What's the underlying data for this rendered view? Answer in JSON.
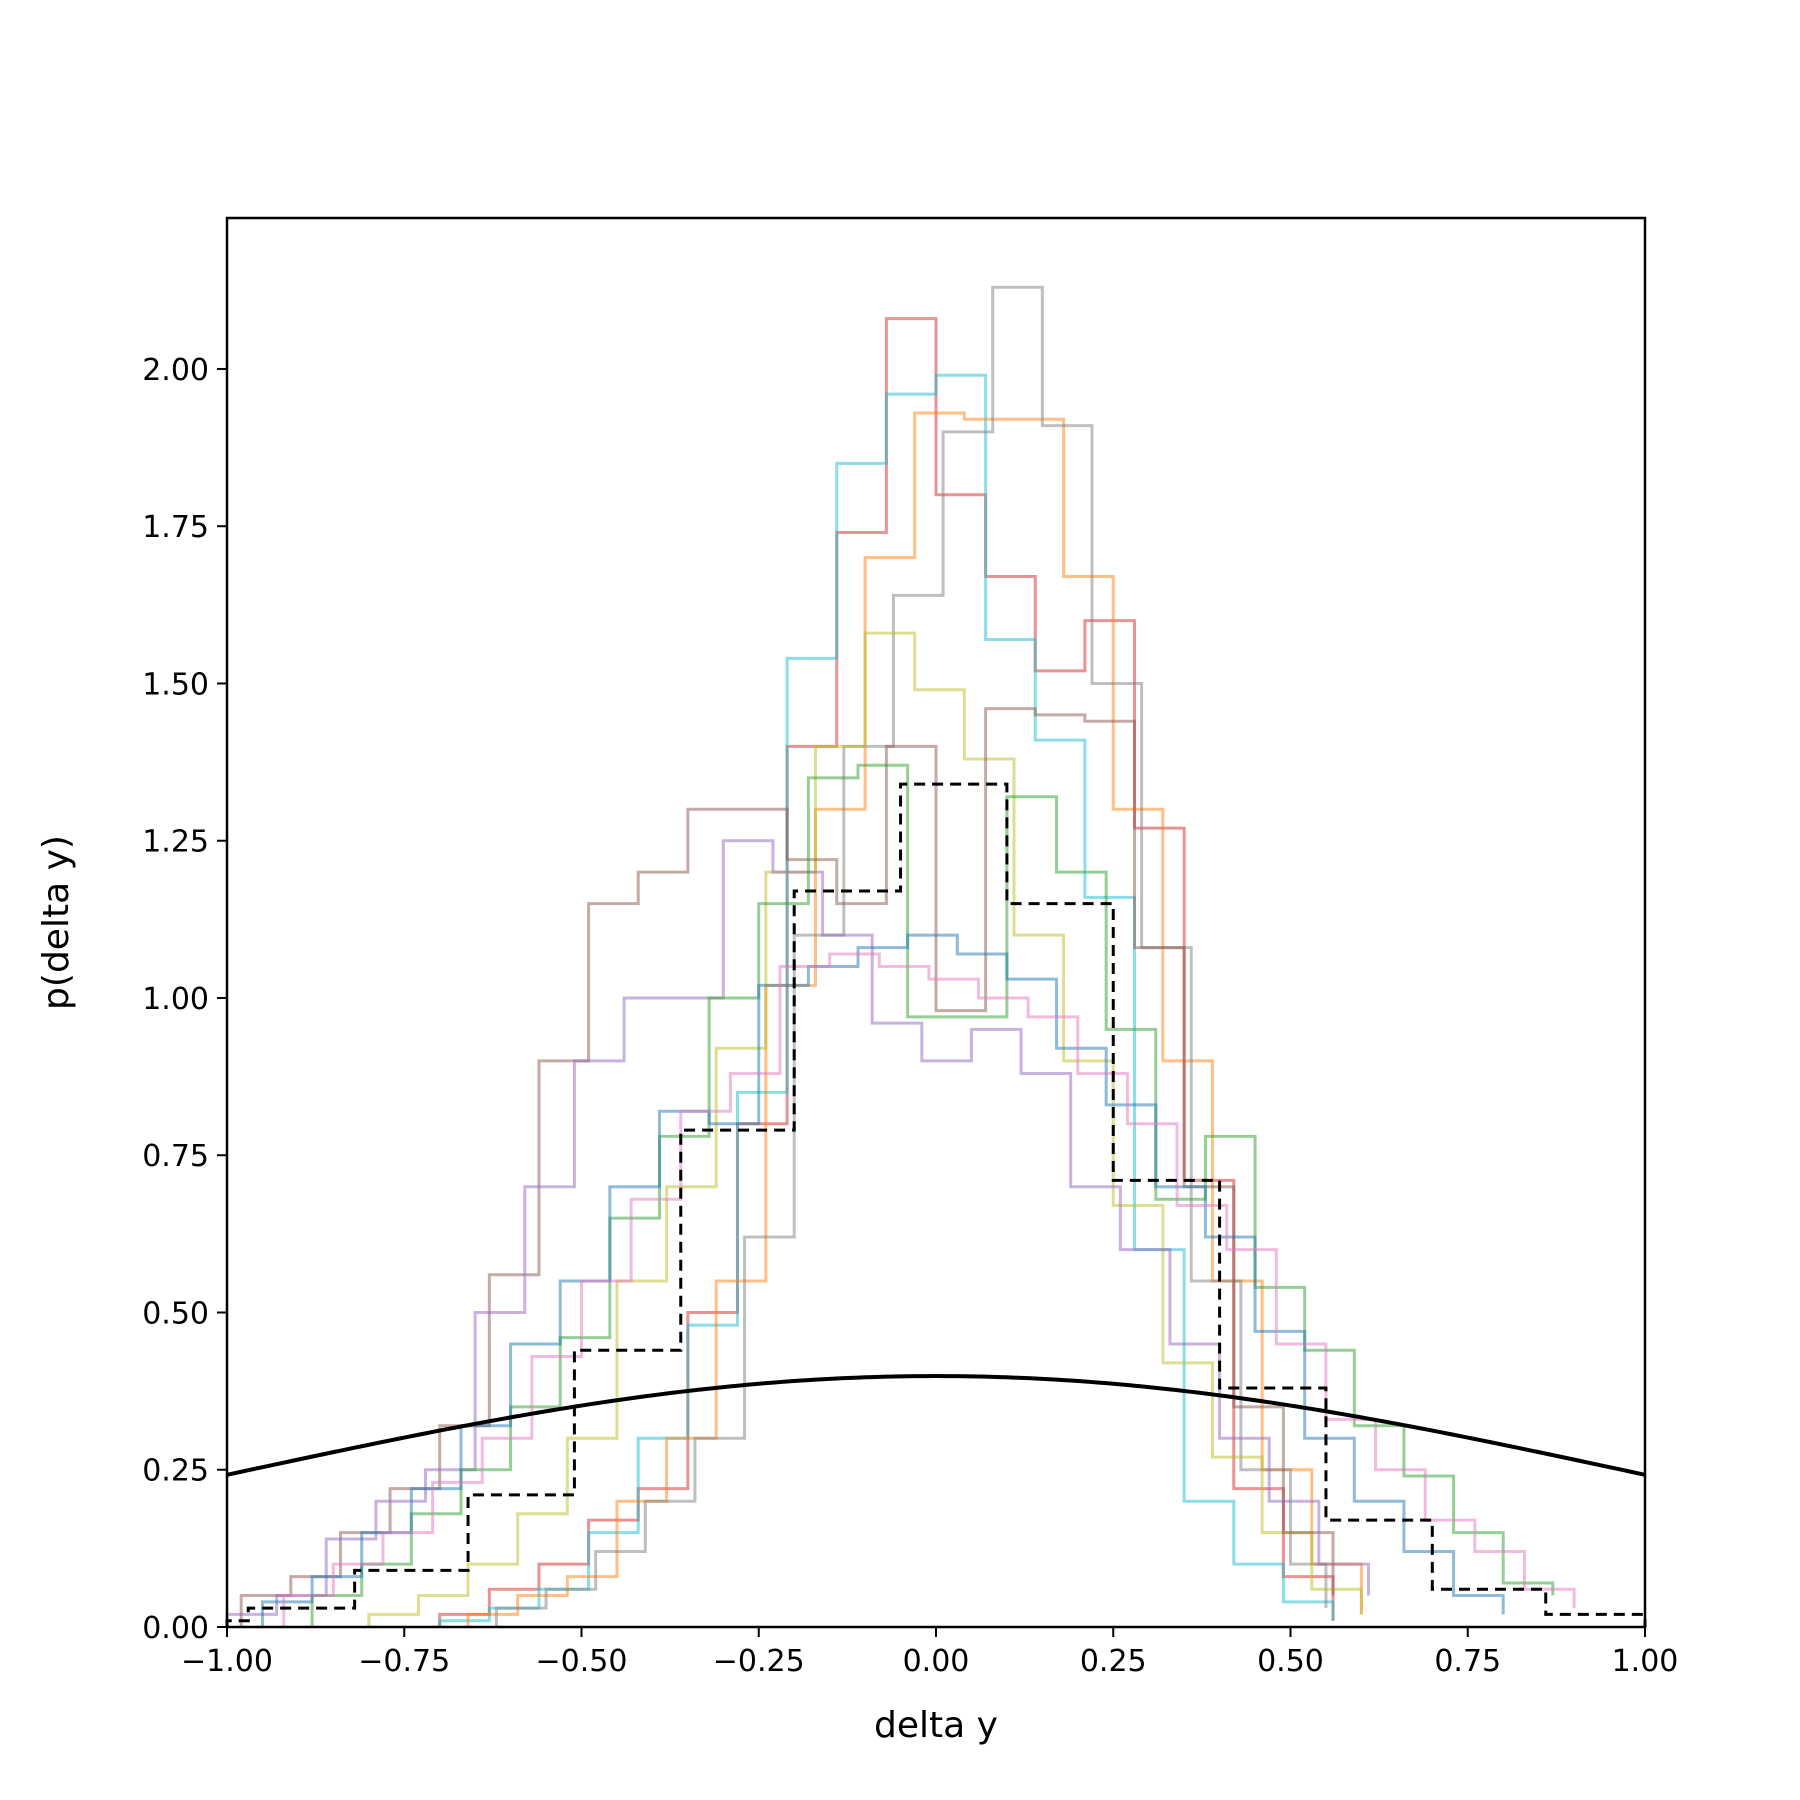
{
  "chart_data": {
    "type": "line",
    "title": "",
    "xlabel": "delta y",
    "ylabel": "p(delta y)",
    "xlim": [
      -1.0,
      1.0
    ],
    "ylim": [
      0.0,
      2.24
    ],
    "grid": false,
    "xticks": [
      -1.0,
      -0.75,
      -0.5,
      -0.25,
      0.0,
      0.25,
      0.5,
      0.75,
      1.0
    ],
    "xtick_labels": [
      "−1.00",
      "−0.75",
      "−0.50",
      "−0.25",
      "0.00",
      "0.25",
      "0.50",
      "0.75",
      "1.00"
    ],
    "yticks": [
      0.0,
      0.25,
      0.5,
      0.75,
      1.0,
      1.25,
      1.5,
      1.75,
      2.0
    ],
    "ytick_labels": [
      "0.00",
      "0.25",
      "0.50",
      "0.75",
      "1.00",
      "1.25",
      "1.50",
      "1.75",
      "2.00"
    ],
    "histograms": [
      {
        "color": "#d62728",
        "edges": [
          -0.7,
          -0.63,
          -0.56,
          -0.49,
          -0.42,
          -0.35,
          -0.28,
          -0.21,
          -0.14,
          -0.07,
          0.0,
          0.07,
          0.14,
          0.21,
          0.28,
          0.35,
          0.42,
          0.49,
          0.56
        ],
        "values": [
          0.02,
          0.06,
          0.1,
          0.17,
          0.22,
          0.5,
          0.8,
          1.4,
          1.74,
          2.08,
          1.8,
          1.67,
          1.52,
          1.6,
          1.27,
          0.71,
          0.22,
          0.08,
          0.01
        ]
      },
      {
        "color": "#17becf",
        "edges": [
          -0.7,
          -0.63,
          -0.56,
          -0.49,
          -0.42,
          -0.35,
          -0.28,
          -0.21,
          -0.14,
          -0.07,
          0.0,
          0.07,
          0.14,
          0.21,
          0.28,
          0.35,
          0.42,
          0.49,
          0.56
        ],
        "values": [
          0.01,
          0.03,
          0.06,
          0.15,
          0.3,
          0.48,
          0.85,
          1.54,
          1.85,
          1.96,
          1.99,
          1.57,
          1.41,
          1.16,
          0.6,
          0.2,
          0.1,
          0.04,
          0.01
        ]
      },
      {
        "color": "#ff7f0e",
        "edges": [
          -0.66,
          -0.59,
          -0.52,
          -0.45,
          -0.38,
          -0.31,
          -0.24,
          -0.17,
          -0.1,
          -0.03,
          0.04,
          0.11,
          0.18,
          0.25,
          0.32,
          0.39,
          0.46,
          0.53,
          0.6
        ],
        "values": [
          0.02,
          0.05,
          0.08,
          0.2,
          0.3,
          0.55,
          1.02,
          1.3,
          1.7,
          1.93,
          1.92,
          1.92,
          1.67,
          1.3,
          0.9,
          0.55,
          0.25,
          0.1,
          0.02
        ]
      },
      {
        "color": "#7f7f7f",
        "edges": [
          -0.62,
          -0.55,
          -0.48,
          -0.41,
          -0.34,
          -0.27,
          -0.2,
          -0.13,
          -0.06,
          0.01,
          0.08,
          0.15,
          0.22,
          0.29,
          0.36,
          0.43,
          0.5,
          0.55
        ],
        "values": [
          0.03,
          0.06,
          0.12,
          0.2,
          0.3,
          0.62,
          1.1,
          1.4,
          1.64,
          1.9,
          2.13,
          1.91,
          1.5,
          1.08,
          0.55,
          0.25,
          0.1,
          0.03
        ]
      },
      {
        "color": "#bcbd22",
        "edges": [
          -0.8,
          -0.73,
          -0.66,
          -0.59,
          -0.52,
          -0.45,
          -0.38,
          -0.31,
          -0.24,
          -0.17,
          -0.1,
          -0.03,
          0.04,
          0.11,
          0.18,
          0.25,
          0.32,
          0.39,
          0.46,
          0.53,
          0.6
        ],
        "values": [
          0.02,
          0.05,
          0.1,
          0.18,
          0.3,
          0.55,
          0.7,
          0.92,
          1.2,
          1.4,
          1.58,
          1.49,
          1.38,
          1.1,
          0.9,
          0.67,
          0.42,
          0.27,
          0.15,
          0.06,
          0.02
        ]
      },
      {
        "color": "#8c564b",
        "edges": [
          -0.98,
          -0.91,
          -0.84,
          -0.77,
          -0.7,
          -0.63,
          -0.56,
          -0.49,
          -0.42,
          -0.35,
          -0.28,
          -0.21,
          -0.14,
          -0.07,
          0.0,
          0.07,
          0.14,
          0.21,
          0.28,
          0.35,
          0.42,
          0.49,
          0.56
        ],
        "values": [
          0.05,
          0.08,
          0.15,
          0.22,
          0.32,
          0.56,
          0.9,
          1.15,
          1.2,
          1.3,
          1.3,
          1.22,
          1.15,
          1.4,
          0.98,
          1.46,
          1.45,
          1.44,
          1.08,
          0.7,
          0.35,
          0.15,
          0.05
        ]
      },
      {
        "color": "#9467bd",
        "edges": [
          -1.0,
          -0.93,
          -0.86,
          -0.79,
          -0.72,
          -0.65,
          -0.58,
          -0.51,
          -0.44,
          -0.37,
          -0.3,
          -0.23,
          -0.16,
          -0.09,
          -0.02,
          0.05,
          0.12,
          0.19,
          0.26,
          0.33,
          0.4,
          0.47,
          0.54,
          0.61
        ],
        "values": [
          0.02,
          0.05,
          0.14,
          0.2,
          0.25,
          0.5,
          0.7,
          0.9,
          1.0,
          1.0,
          1.25,
          1.2,
          1.1,
          0.96,
          0.9,
          0.95,
          0.88,
          0.7,
          0.6,
          0.45,
          0.3,
          0.2,
          0.1,
          0.05
        ]
      },
      {
        "color": "#2ca02c",
        "edges": [
          -0.88,
          -0.81,
          -0.74,
          -0.67,
          -0.6,
          -0.53,
          -0.46,
          -0.39,
          -0.32,
          -0.25,
          -0.18,
          -0.11,
          -0.04,
          0.03,
          0.1,
          0.17,
          0.24,
          0.31,
          0.38,
          0.45,
          0.52,
          0.59,
          0.66,
          0.73,
          0.8,
          0.87
        ],
        "values": [
          0.05,
          0.1,
          0.18,
          0.25,
          0.35,
          0.46,
          0.65,
          0.78,
          1.0,
          1.15,
          1.35,
          1.37,
          0.97,
          0.97,
          1.32,
          1.2,
          0.95,
          0.68,
          0.78,
          0.54,
          0.44,
          0.32,
          0.24,
          0.15,
          0.07,
          0.05
        ]
      },
      {
        "color": "#1f77b4",
        "edges": [
          -0.95,
          -0.88,
          -0.81,
          -0.74,
          -0.67,
          -0.6,
          -0.53,
          -0.46,
          -0.39,
          -0.32,
          -0.25,
          -0.18,
          -0.11,
          -0.04,
          0.03,
          0.1,
          0.17,
          0.24,
          0.31,
          0.38,
          0.45,
          0.52,
          0.59,
          0.66,
          0.73,
          0.8
        ],
        "values": [
          0.04,
          0.08,
          0.15,
          0.22,
          0.32,
          0.45,
          0.55,
          0.7,
          0.82,
          0.8,
          1.02,
          1.05,
          1.08,
          1.1,
          1.07,
          1.03,
          0.92,
          0.83,
          0.7,
          0.62,
          0.47,
          0.3,
          0.2,
          0.12,
          0.05,
          0.02
        ]
      },
      {
        "color": "#e377c2",
        "edges": [
          -0.92,
          -0.85,
          -0.78,
          -0.71,
          -0.64,
          -0.57,
          -0.5,
          -0.43,
          -0.36,
          -0.29,
          -0.22,
          -0.15,
          -0.08,
          -0.01,
          0.06,
          0.13,
          0.2,
          0.27,
          0.34,
          0.41,
          0.48,
          0.55,
          0.62,
          0.69,
          0.76,
          0.83,
          0.9
        ],
        "values": [
          0.05,
          0.1,
          0.15,
          0.23,
          0.3,
          0.43,
          0.55,
          0.68,
          0.82,
          0.88,
          1.05,
          1.07,
          1.05,
          1.03,
          1.0,
          0.97,
          0.88,
          0.8,
          0.67,
          0.6,
          0.45,
          0.33,
          0.25,
          0.17,
          0.12,
          0.06,
          0.03
        ]
      }
    ],
    "dashed_hist": {
      "color": "#000000",
      "edges": [
        -1.0,
        -0.97,
        -0.82,
        -0.66,
        -0.51,
        -0.36,
        -0.2,
        -0.05,
        0.1,
        0.25,
        0.4,
        0.55,
        0.7,
        0.86,
        1.0
      ],
      "values": [
        0.01,
        0.03,
        0.09,
        0.21,
        0.44,
        0.79,
        1.17,
        1.34,
        1.15,
        0.71,
        0.38,
        0.17,
        0.06,
        0.02
      ]
    },
    "curve": {
      "color": "#000000",
      "type": "normal_pdf",
      "mu": 0.0,
      "sigma": 1.0
    }
  }
}
